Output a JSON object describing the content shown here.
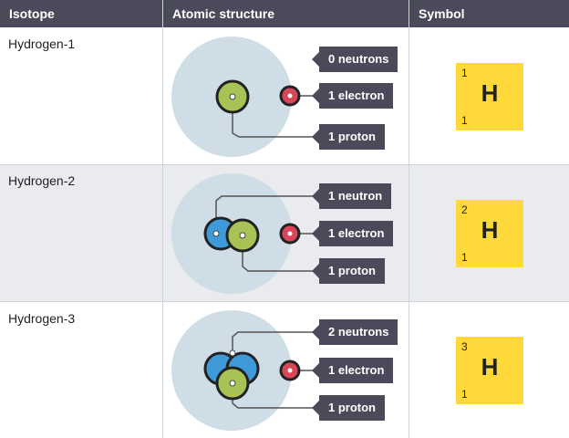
{
  "headers": {
    "isotope": "Isotope",
    "structure": "Atomic structure",
    "symbol": "Symbol"
  },
  "rows": [
    {
      "name": "Hydrogen-1",
      "labels": [
        "0 neutrons",
        "1 electron",
        "1 proton"
      ],
      "symbol": {
        "mass": "1",
        "number": "1",
        "element": "H"
      }
    },
    {
      "name": "Hydrogen-2",
      "labels": [
        "1 neutron",
        "1 electron",
        "1 proton"
      ],
      "symbol": {
        "mass": "2",
        "number": "1",
        "element": "H"
      }
    },
    {
      "name": "Hydrogen-3",
      "labels": [
        "2 neutrons",
        "1 electron",
        "1 proton"
      ],
      "symbol": {
        "mass": "3",
        "number": "1",
        "element": "H"
      }
    }
  ],
  "colors": {
    "header": "#4a4a5a",
    "cloud": "#cfdde6",
    "proton": "#a8c256",
    "neutron": "#3e9ad8",
    "electron": "#d8465a",
    "symbol": "#ffd83a"
  }
}
